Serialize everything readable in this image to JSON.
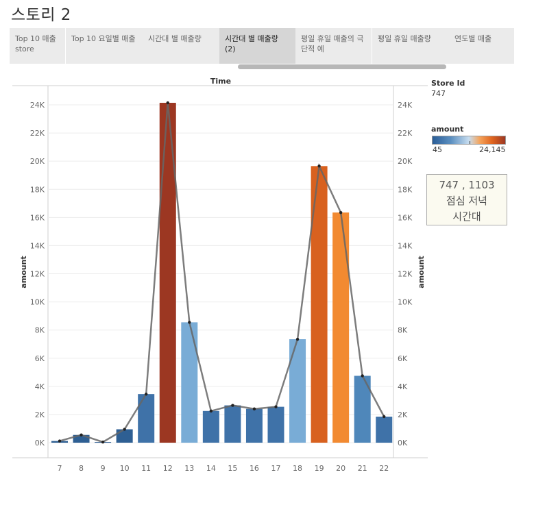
{
  "story": {
    "title": "스토리 2"
  },
  "tabs": [
    {
      "label": "Top 10 매출 store",
      "active": false
    },
    {
      "label": "Top 10 요일별 매출",
      "active": false
    },
    {
      "label": "시간대 별 매출량",
      "active": false
    },
    {
      "label": "시간대 별 매출량 (2)",
      "active": true
    },
    {
      "label": "평일 휴일 매출의 극단적 예",
      "active": false
    },
    {
      "label": "평일 휴일 매출량",
      "active": false
    },
    {
      "label": "연도별 매출",
      "active": false
    }
  ],
  "legend": {
    "store_title": "Store Id",
    "store_value": "747",
    "amount_title": "amount",
    "amount_min": "45",
    "amount_max": "24,145"
  },
  "annotation": {
    "line1": "747 , 1103",
    "line2": "점심 저녁",
    "line3": "시간대"
  },
  "colors": {
    "dark_blue": "#2e5f93",
    "mid_blue": "#3f72a8",
    "steel_blue": "#4f87ba",
    "light_blue": "#79acd6",
    "dark_orange": "#d8611f",
    "light_orange": "#f28a31",
    "rust": "#9c3722",
    "line": "#666666"
  },
  "chart_data": {
    "type": "bar",
    "title": "Time",
    "ylabel": "amount",
    "ylabel_right": "amount",
    "ylim": [
      0,
      25000
    ],
    "yticks": [
      0,
      2000,
      4000,
      6000,
      8000,
      10000,
      12000,
      14000,
      16000,
      18000,
      20000,
      22000,
      24000
    ],
    "ytick_labels": [
      "0K",
      "2K",
      "4K",
      "6K",
      "8K",
      "10K",
      "12K",
      "14K",
      "16K",
      "18K",
      "20K",
      "22K",
      "24K"
    ],
    "categories": [
      "7",
      "8",
      "9",
      "10",
      "11",
      "12",
      "13",
      "14",
      "15",
      "16",
      "17",
      "18",
      "19",
      "20",
      "21",
      "22"
    ],
    "series": [
      {
        "type": "bar",
        "values": [
          120,
          550,
          45,
          950,
          3450,
          24145,
          8550,
          2250,
          2650,
          2400,
          2550,
          7350,
          19650,
          16350,
          4750,
          1850
        ],
        "colors": [
          "#2e5f93",
          "#2e5f93",
          "#2e5f93",
          "#2e5f93",
          "#3f72a8",
          "#9c3722",
          "#79acd6",
          "#3f72a8",
          "#3f72a8",
          "#3f72a8",
          "#3f72a8",
          "#79acd6",
          "#d8611f",
          "#f28a31",
          "#4f87ba",
          "#3f72a8"
        ]
      },
      {
        "type": "line",
        "values": [
          120,
          550,
          45,
          950,
          3450,
          24145,
          8550,
          2250,
          2650,
          2400,
          2550,
          7350,
          19650,
          16350,
          4750,
          1850
        ]
      }
    ],
    "grid": true,
    "legend_position": "right"
  }
}
